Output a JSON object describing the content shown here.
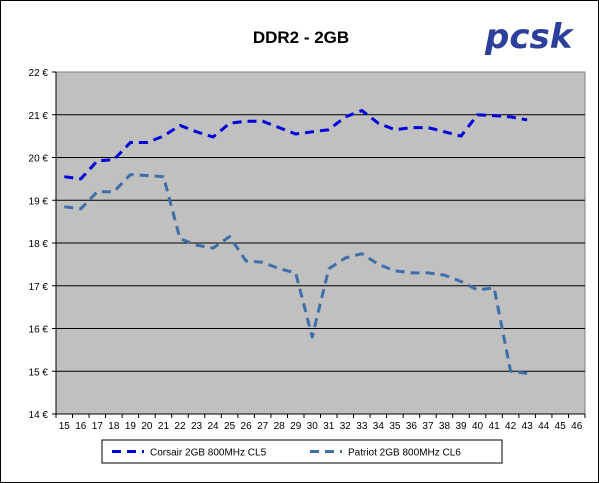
{
  "logo": {
    "text": "pcsk"
  },
  "chart_data": {
    "type": "line",
    "title": "DDR2 - 2GB",
    "xlabel": "",
    "ylabel": "",
    "categories": [
      15,
      16,
      17,
      18,
      19,
      20,
      21,
      22,
      23,
      24,
      25,
      26,
      27,
      28,
      29,
      30,
      31,
      32,
      33,
      34,
      35,
      36,
      37,
      38,
      39,
      40,
      41,
      42,
      43,
      44,
      45,
      46
    ],
    "ylim": [
      14,
      22
    ],
    "yticks": [
      "14 €",
      "15 €",
      "16 €",
      "17 €",
      "18 €",
      "19 €",
      "20 €",
      "21 €",
      "22 €"
    ],
    "grid": true,
    "legend": "bottom",
    "plot_background": "#c0c0c0",
    "series": [
      {
        "name": "Corsair 2GB 800MHz CL5",
        "color": "#0000dd",
        "values": [
          19.55,
          19.5,
          19.92,
          19.95,
          20.35,
          20.35,
          20.5,
          20.75,
          20.6,
          20.48,
          20.8,
          20.85,
          20.85,
          20.7,
          20.55,
          20.6,
          20.65,
          20.95,
          21.1,
          20.8,
          20.65,
          20.7,
          20.7,
          20.6,
          20.5,
          21.0,
          20.98,
          20.95,
          20.88,
          null,
          null,
          null
        ]
      },
      {
        "name": "Patriot 2GB 800MHz CL6",
        "color": "#3f6fa9",
        "values": [
          18.85,
          18.8,
          19.2,
          19.2,
          19.6,
          19.58,
          19.55,
          18.1,
          17.95,
          17.88,
          18.15,
          17.58,
          17.55,
          17.4,
          17.3,
          15.8,
          17.4,
          17.65,
          17.75,
          17.5,
          17.35,
          17.3,
          17.3,
          17.25,
          17.1,
          16.9,
          16.95,
          15.0,
          14.95,
          null,
          null,
          null
        ]
      }
    ]
  }
}
